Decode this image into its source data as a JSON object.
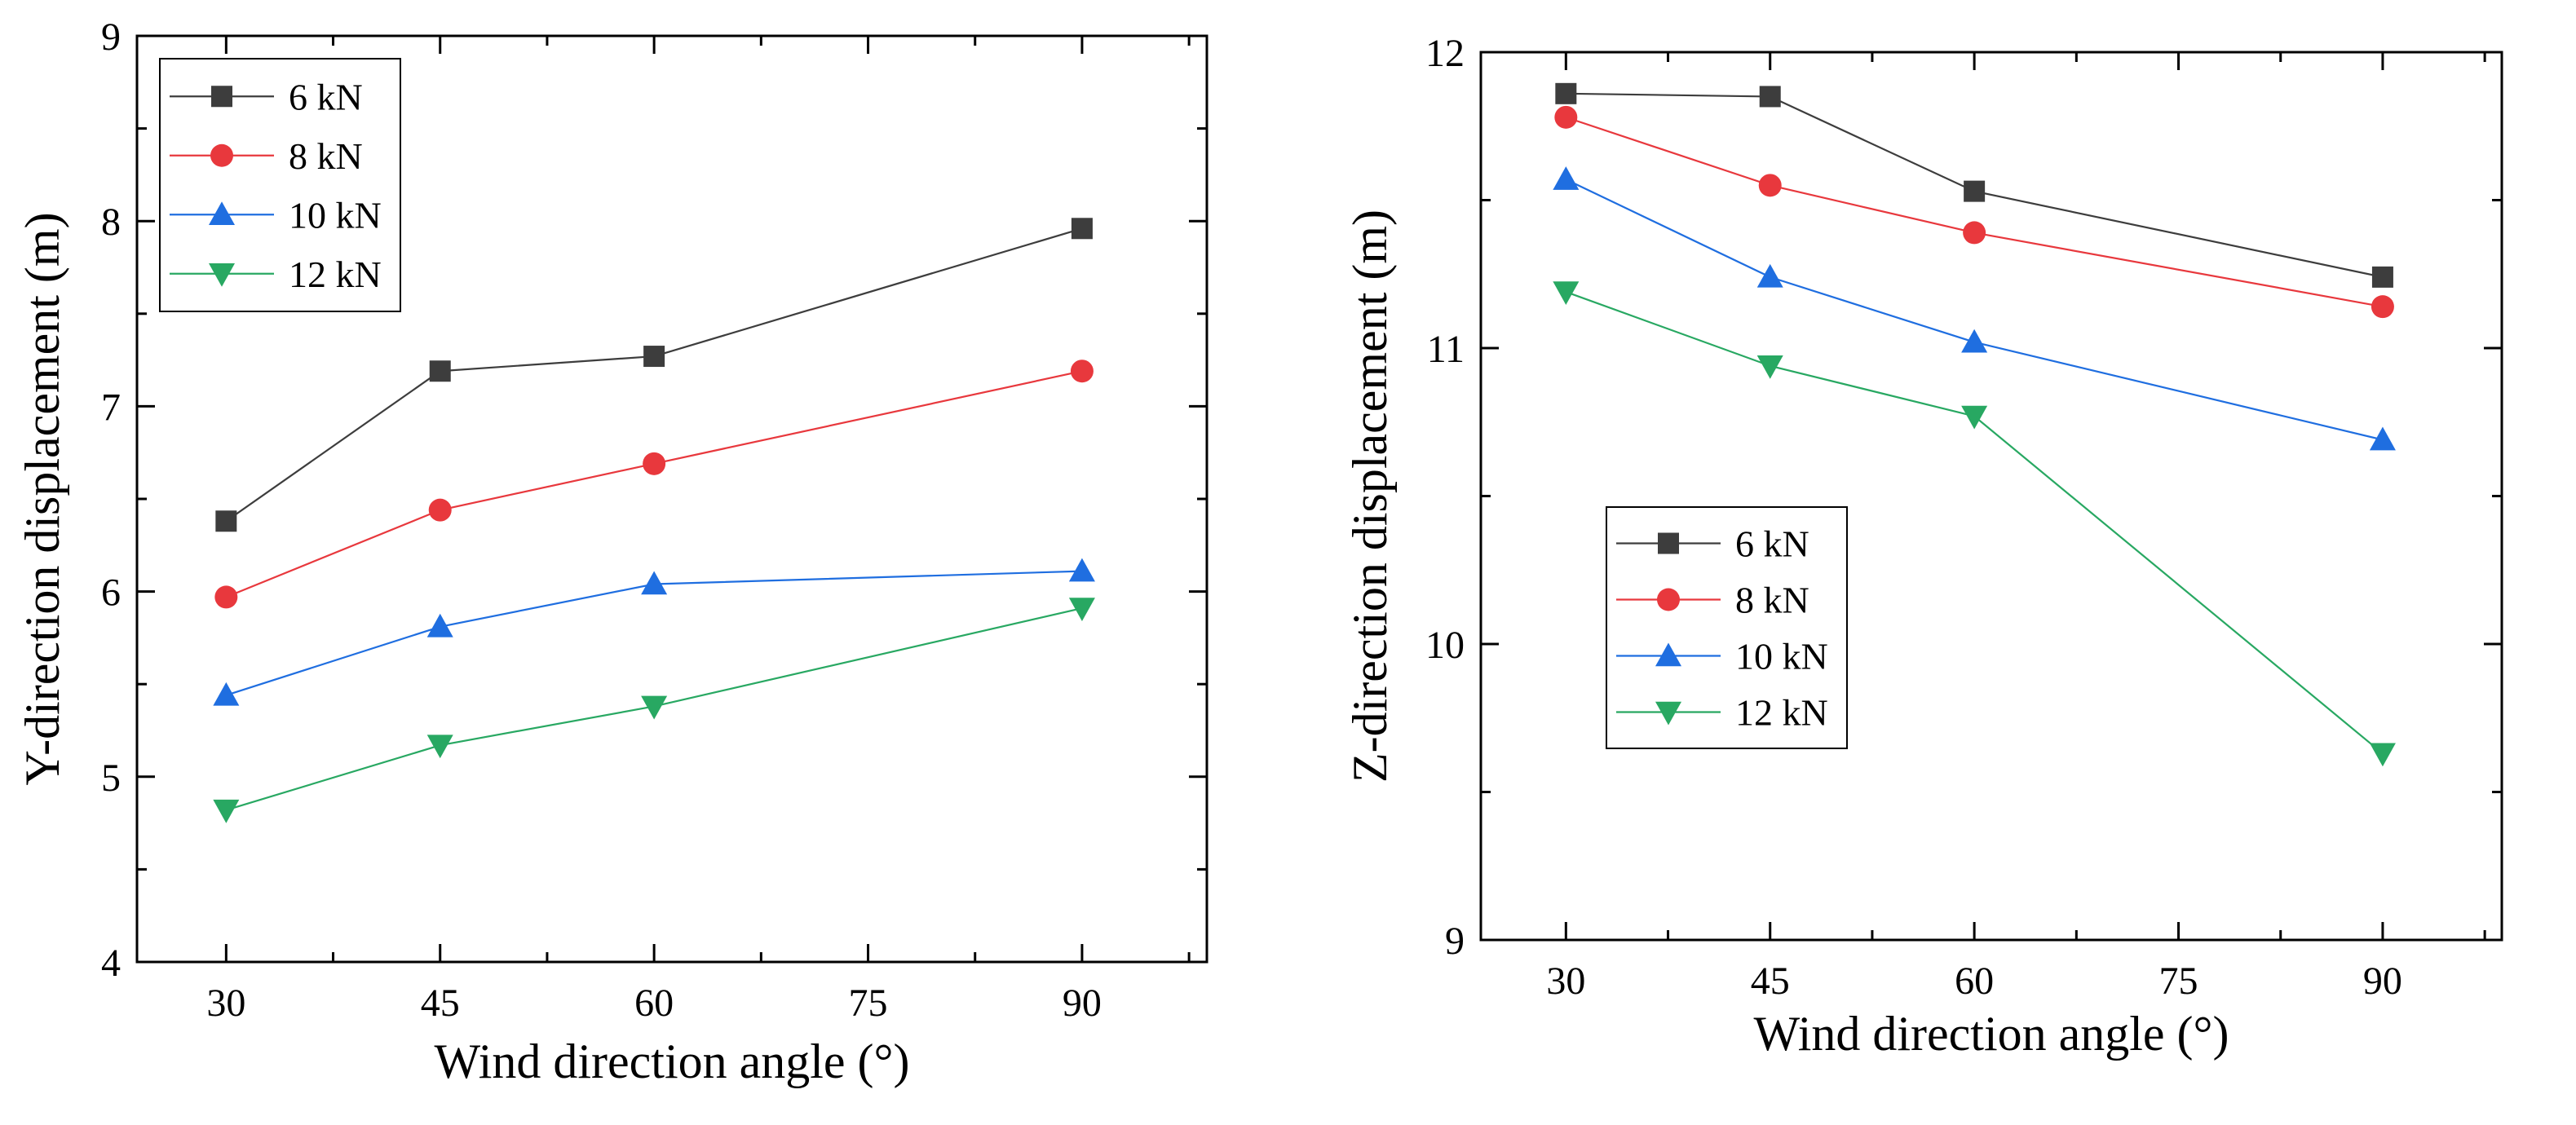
{
  "chart_data": [
    {
      "type": "line",
      "title": "",
      "xlabel": "Wind direction angle (°)",
      "ylabel": "Y-direction displacement (m)",
      "xlim": [
        23.75,
        98.75
      ],
      "ylim": [
        4,
        9
      ],
      "x": [
        30,
        45,
        60,
        90
      ],
      "xticks": [
        "30",
        "45",
        "60",
        "75",
        "90"
      ],
      "yticks": [
        "4",
        "5",
        "6",
        "7",
        "8",
        "9"
      ],
      "legend_position": "top-left",
      "grid": false,
      "series": [
        {
          "name": "6 kN",
          "color": "#3d3d3d",
          "marker": "square",
          "values": [
            6.38,
            7.19,
            7.27,
            7.96
          ]
        },
        {
          "name": "8 kN",
          "color": "#e8383d",
          "marker": "circle",
          "values": [
            5.97,
            6.44,
            6.69,
            7.19
          ]
        },
        {
          "name": "10 kN",
          "color": "#1f6ee0",
          "marker": "triangle-up",
          "values": [
            5.44,
            5.81,
            6.04,
            6.11
          ]
        },
        {
          "name": "12 kN",
          "color": "#28a862",
          "marker": "triangle-down",
          "values": [
            4.82,
            5.17,
            5.38,
            5.91
          ]
        }
      ]
    },
    {
      "type": "line",
      "title": "",
      "xlabel": "Wind direction angle (°)",
      "ylabel": "Z-direction displacement (m)",
      "xlim": [
        23.75,
        98.75
      ],
      "ylim": [
        9,
        12
      ],
      "x": [
        30,
        45,
        60,
        90
      ],
      "xticks": [
        "30",
        "45",
        "60",
        "75",
        "90"
      ],
      "yticks": [
        "9",
        "10",
        "11",
        "12"
      ],
      "legend_position": "center-left",
      "grid": false,
      "series": [
        {
          "name": "6 kN",
          "color": "#3d3d3d",
          "marker": "square",
          "values": [
            11.86,
            11.85,
            11.53,
            11.24
          ]
        },
        {
          "name": "8 kN",
          "color": "#e8383d",
          "marker": "circle",
          "values": [
            11.78,
            11.55,
            11.39,
            11.14
          ]
        },
        {
          "name": "10 kN",
          "color": "#1f6ee0",
          "marker": "triangle-up",
          "values": [
            11.57,
            11.24,
            11.02,
            10.69
          ]
        },
        {
          "name": "12 kN",
          "color": "#28a862",
          "marker": "triangle-down",
          "values": [
            11.19,
            10.94,
            10.77,
            9.63
          ]
        }
      ]
    }
  ]
}
